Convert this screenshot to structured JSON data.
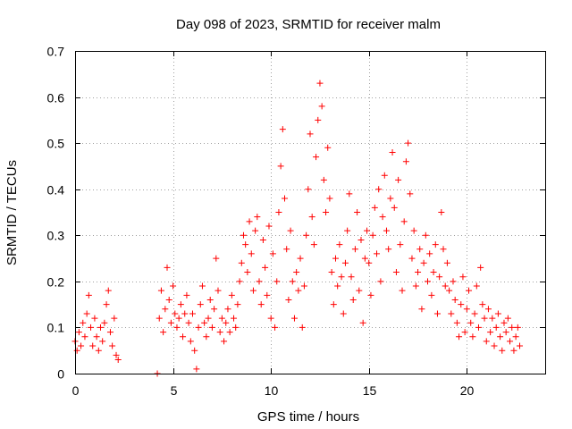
{
  "chart_data": {
    "type": "scatter",
    "title": "Day 098 of 2023, SRMTID for receiver malm",
    "xlabel": "GPS time / hours",
    "ylabel": "SRMTID / TECUs",
    "xlim": [
      0,
      24
    ],
    "ylim": [
      0,
      0.7
    ],
    "xticks": [
      "0",
      "5",
      "10",
      "15",
      "20"
    ],
    "yticks": [
      "0",
      "0.1",
      "0.2",
      "0.3",
      "0.4",
      "0.5",
      "0.6",
      "0.7"
    ],
    "grid": true,
    "marker": "plus",
    "color": "#ff0000",
    "series": [
      {
        "name": "SRMTID",
        "note": "approximate sample of the plotted points",
        "points": [
          [
            0.0,
            0.07
          ],
          [
            0.1,
            0.05
          ],
          [
            0.2,
            0.09
          ],
          [
            0.3,
            0.06
          ],
          [
            0.4,
            0.11
          ],
          [
            0.5,
            0.08
          ],
          [
            0.6,
            0.13
          ],
          [
            0.7,
            0.17
          ],
          [
            0.8,
            0.1
          ],
          [
            0.9,
            0.06
          ],
          [
            1.0,
            0.12
          ],
          [
            1.1,
            0.08
          ],
          [
            1.2,
            0.05
          ],
          [
            1.3,
            0.1
          ],
          [
            1.4,
            0.07
          ],
          [
            1.5,
            0.11
          ],
          [
            1.6,
            0.15
          ],
          [
            1.7,
            0.18
          ],
          [
            1.8,
            0.09
          ],
          [
            1.9,
            0.06
          ],
          [
            2.0,
            0.12
          ],
          [
            2.1,
            0.04
          ],
          [
            2.2,
            0.03
          ],
          [
            4.2,
            0.0
          ],
          [
            4.3,
            0.12
          ],
          [
            4.4,
            0.18
          ],
          [
            4.5,
            0.09
          ],
          [
            4.6,
            0.14
          ],
          [
            4.7,
            0.23
          ],
          [
            4.8,
            0.16
          ],
          [
            4.9,
            0.11
          ],
          [
            5.0,
            0.19
          ],
          [
            5.1,
            0.13
          ],
          [
            5.2,
            0.1
          ],
          [
            5.3,
            0.12
          ],
          [
            5.4,
            0.15
          ],
          [
            5.5,
            0.08
          ],
          [
            5.6,
            0.13
          ],
          [
            5.7,
            0.17
          ],
          [
            5.8,
            0.11
          ],
          [
            5.9,
            0.07
          ],
          [
            6.0,
            0.13
          ],
          [
            6.1,
            0.05
          ],
          [
            6.2,
            0.01
          ],
          [
            6.3,
            0.1
          ],
          [
            6.4,
            0.15
          ],
          [
            6.5,
            0.19
          ],
          [
            6.6,
            0.11
          ],
          [
            6.7,
            0.08
          ],
          [
            6.8,
            0.12
          ],
          [
            6.9,
            0.16
          ],
          [
            7.0,
            0.1
          ],
          [
            7.1,
            0.14
          ],
          [
            7.2,
            0.25
          ],
          [
            7.3,
            0.18
          ],
          [
            7.4,
            0.09
          ],
          [
            7.5,
            0.12
          ],
          [
            7.6,
            0.07
          ],
          [
            7.7,
            0.11
          ],
          [
            7.8,
            0.14
          ],
          [
            7.9,
            0.09
          ],
          [
            8.0,
            0.17
          ],
          [
            8.1,
            0.12
          ],
          [
            8.2,
            0.1
          ],
          [
            8.3,
            0.15
          ],
          [
            8.4,
            0.2
          ],
          [
            8.5,
            0.24
          ],
          [
            8.6,
            0.3
          ],
          [
            8.7,
            0.28
          ],
          [
            8.8,
            0.22
          ],
          [
            8.9,
            0.33
          ],
          [
            9.0,
            0.26
          ],
          [
            9.1,
            0.18
          ],
          [
            9.2,
            0.31
          ],
          [
            9.3,
            0.34
          ],
          [
            9.4,
            0.2
          ],
          [
            9.5,
            0.15
          ],
          [
            9.6,
            0.29
          ],
          [
            9.7,
            0.23
          ],
          [
            9.8,
            0.17
          ],
          [
            9.9,
            0.32
          ],
          [
            10.0,
            0.12
          ],
          [
            10.1,
            0.26
          ],
          [
            10.2,
            0.1
          ],
          [
            10.3,
            0.2
          ],
          [
            10.4,
            0.35
          ],
          [
            10.5,
            0.45
          ],
          [
            10.6,
            0.53
          ],
          [
            10.7,
            0.38
          ],
          [
            10.8,
            0.27
          ],
          [
            10.9,
            0.16
          ],
          [
            11.0,
            0.31
          ],
          [
            11.1,
            0.2
          ],
          [
            11.2,
            0.12
          ],
          [
            11.3,
            0.22
          ],
          [
            11.4,
            0.18
          ],
          [
            11.5,
            0.25
          ],
          [
            11.6,
            0.1
          ],
          [
            11.7,
            0.19
          ],
          [
            11.8,
            0.3
          ],
          [
            11.9,
            0.4
          ],
          [
            12.0,
            0.52
          ],
          [
            12.1,
            0.34
          ],
          [
            12.2,
            0.28
          ],
          [
            12.3,
            0.47
          ],
          [
            12.4,
            0.55
          ],
          [
            12.5,
            0.63
          ],
          [
            12.6,
            0.58
          ],
          [
            12.7,
            0.42
          ],
          [
            12.8,
            0.35
          ],
          [
            12.9,
            0.49
          ],
          [
            13.0,
            0.38
          ],
          [
            13.1,
            0.22
          ],
          [
            13.2,
            0.15
          ],
          [
            13.3,
            0.25
          ],
          [
            13.4,
            0.19
          ],
          [
            13.5,
            0.28
          ],
          [
            13.6,
            0.21
          ],
          [
            13.7,
            0.13
          ],
          [
            13.8,
            0.24
          ],
          [
            13.9,
            0.31
          ],
          [
            14.0,
            0.39
          ],
          [
            14.1,
            0.21
          ],
          [
            14.2,
            0.16
          ],
          [
            14.3,
            0.27
          ],
          [
            14.4,
            0.35
          ],
          [
            14.5,
            0.18
          ],
          [
            14.6,
            0.29
          ],
          [
            14.7,
            0.11
          ],
          [
            14.8,
            0.25
          ],
          [
            14.9,
            0.31
          ],
          [
            15.0,
            0.24
          ],
          [
            15.1,
            0.17
          ],
          [
            15.2,
            0.3
          ],
          [
            15.3,
            0.36
          ],
          [
            15.4,
            0.26
          ],
          [
            15.5,
            0.4
          ],
          [
            15.6,
            0.2
          ],
          [
            15.7,
            0.34
          ],
          [
            15.8,
            0.43
          ],
          [
            15.9,
            0.31
          ],
          [
            16.0,
            0.27
          ],
          [
            16.1,
            0.38
          ],
          [
            16.2,
            0.48
          ],
          [
            16.3,
            0.36
          ],
          [
            16.4,
            0.22
          ],
          [
            16.5,
            0.42
          ],
          [
            16.6,
            0.28
          ],
          [
            16.7,
            0.18
          ],
          [
            16.8,
            0.33
          ],
          [
            16.9,
            0.46
          ],
          [
            17.0,
            0.5
          ],
          [
            17.1,
            0.39
          ],
          [
            17.2,
            0.25
          ],
          [
            17.3,
            0.31
          ],
          [
            17.4,
            0.19
          ],
          [
            17.5,
            0.22
          ],
          [
            17.6,
            0.27
          ],
          [
            17.7,
            0.14
          ],
          [
            17.8,
            0.24
          ],
          [
            17.9,
            0.3
          ],
          [
            18.0,
            0.2
          ],
          [
            18.1,
            0.26
          ],
          [
            18.2,
            0.17
          ],
          [
            18.3,
            0.22
          ],
          [
            18.4,
            0.28
          ],
          [
            18.5,
            0.13
          ],
          [
            18.6,
            0.21
          ],
          [
            18.7,
            0.35
          ],
          [
            18.8,
            0.27
          ],
          [
            18.9,
            0.19
          ],
          [
            19.0,
            0.24
          ],
          [
            19.1,
            0.18
          ],
          [
            19.2,
            0.13
          ],
          [
            19.3,
            0.2
          ],
          [
            19.4,
            0.16
          ],
          [
            19.5,
            0.11
          ],
          [
            19.6,
            0.08
          ],
          [
            19.7,
            0.15
          ],
          [
            19.8,
            0.21
          ],
          [
            19.9,
            0.09
          ],
          [
            20.0,
            0.14
          ],
          [
            20.1,
            0.18
          ],
          [
            20.2,
            0.11
          ],
          [
            20.3,
            0.08
          ],
          [
            20.4,
            0.13
          ],
          [
            20.5,
            0.19
          ],
          [
            20.6,
            0.1
          ],
          [
            20.7,
            0.23
          ],
          [
            20.8,
            0.15
          ],
          [
            20.9,
            0.12
          ],
          [
            21.0,
            0.07
          ],
          [
            21.1,
            0.14
          ],
          [
            21.2,
            0.09
          ],
          [
            21.3,
            0.12
          ],
          [
            21.4,
            0.06
          ],
          [
            21.5,
            0.1
          ],
          [
            21.6,
            0.13
          ],
          [
            21.7,
            0.08
          ],
          [
            21.8,
            0.05
          ],
          [
            21.9,
            0.11
          ],
          [
            22.0,
            0.09
          ],
          [
            22.1,
            0.12
          ],
          [
            22.2,
            0.07
          ],
          [
            22.3,
            0.1
          ],
          [
            22.4,
            0.05
          ],
          [
            22.5,
            0.08
          ],
          [
            22.6,
            0.1
          ],
          [
            22.7,
            0.06
          ]
        ]
      }
    ]
  }
}
